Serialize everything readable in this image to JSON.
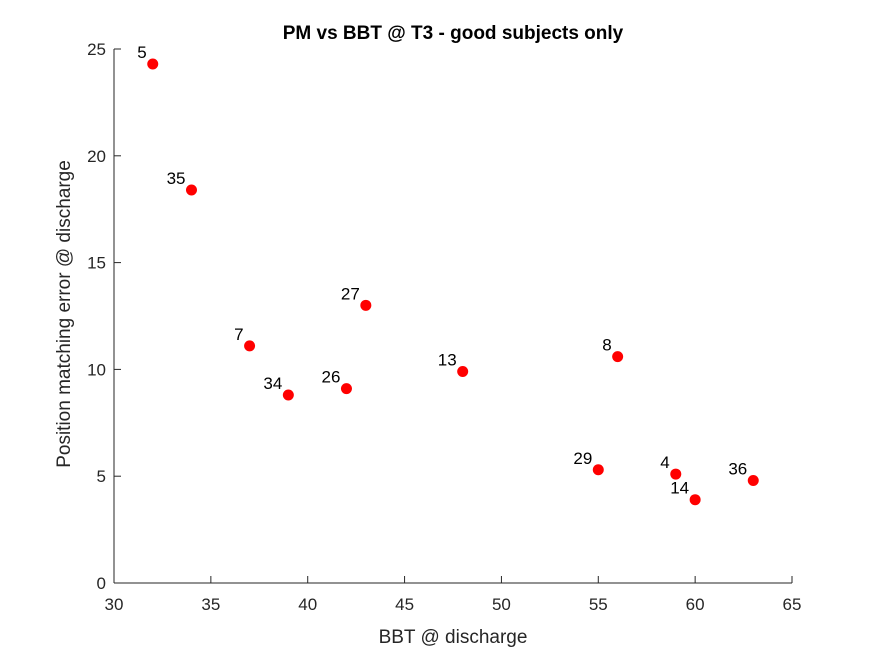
{
  "chart_data": {
    "type": "scatter",
    "title": "PM vs BBT @ T3 - good subjects only",
    "xlabel": "BBT @ discharge",
    "ylabel": "Position matching error @ discharge",
    "xlim": [
      30,
      65
    ],
    "ylim": [
      0,
      25
    ],
    "xticks": [
      30,
      35,
      40,
      45,
      50,
      55,
      60,
      65
    ],
    "yticks": [
      0,
      5,
      10,
      15,
      20,
      25
    ],
    "grid": false,
    "marker_color": "#ff0000",
    "points": [
      {
        "label": "5",
        "x": 32,
        "y": 24.3
      },
      {
        "label": "35",
        "x": 34,
        "y": 18.4
      },
      {
        "label": "7",
        "x": 37,
        "y": 11.1
      },
      {
        "label": "34",
        "x": 39,
        "y": 8.8
      },
      {
        "label": "26",
        "x": 42,
        "y": 9.1
      },
      {
        "label": "27",
        "x": 43,
        "y": 13.0
      },
      {
        "label": "13",
        "x": 48,
        "y": 9.9
      },
      {
        "label": "29",
        "x": 55,
        "y": 5.3
      },
      {
        "label": "8",
        "x": 56,
        "y": 10.6
      },
      {
        "label": "4",
        "x": 59,
        "y": 5.1
      },
      {
        "label": "14",
        "x": 60,
        "y": 3.9
      },
      {
        "label": "36",
        "x": 63,
        "y": 4.8
      }
    ]
  }
}
